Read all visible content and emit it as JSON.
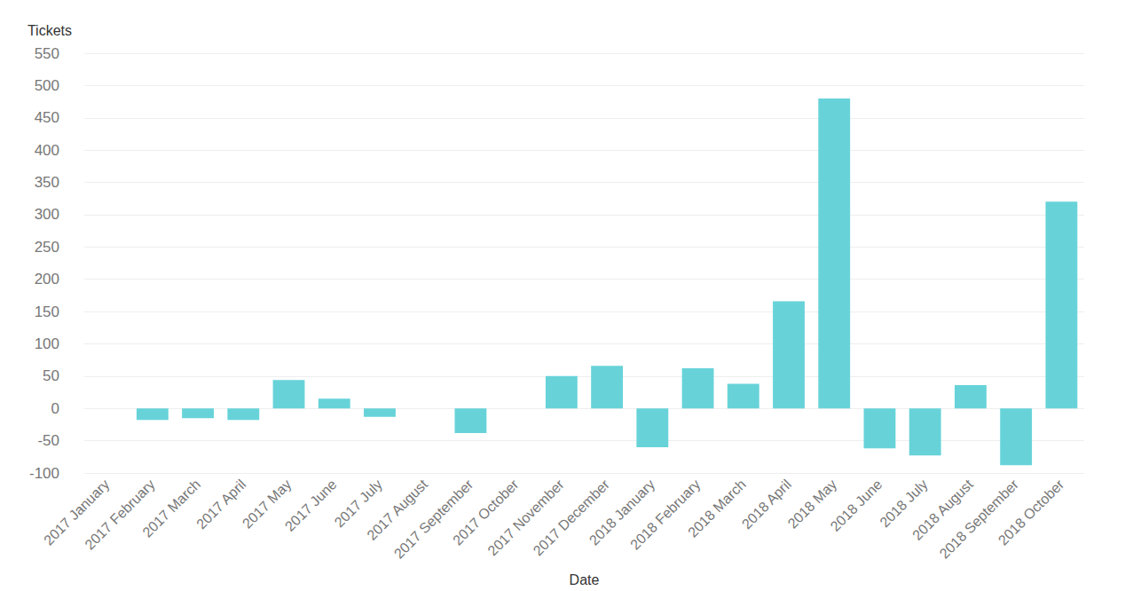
{
  "chart_data": {
    "type": "bar",
    "y_label": "Tickets",
    "x_label": "Date",
    "categories": [
      "2017 January",
      "2017 February",
      "2017 March",
      "2017 April",
      "2017 May",
      "2017 June",
      "2017 July",
      "2017 August",
      "2017 September",
      "2017 October",
      "2017 November",
      "2017 December",
      "2018 January",
      "2018 February",
      "2018 March",
      "2018 April",
      "2018 May",
      "2018 June",
      "2018 July",
      "2018 August",
      "2018 September",
      "2018 October"
    ],
    "values": [
      0,
      -18,
      -15,
      -18,
      44,
      15,
      -13,
      0,
      -38,
      0,
      50,
      66,
      -60,
      62,
      38,
      166,
      480,
      -62,
      -73,
      36,
      -88,
      320
    ],
    "color": "#67d3d9",
    "ylim": [
      -100,
      550
    ],
    "yticks": [
      -100,
      -50,
      0,
      50,
      100,
      150,
      200,
      250,
      300,
      350,
      400,
      450,
      500,
      550
    ],
    "grid": true
  }
}
